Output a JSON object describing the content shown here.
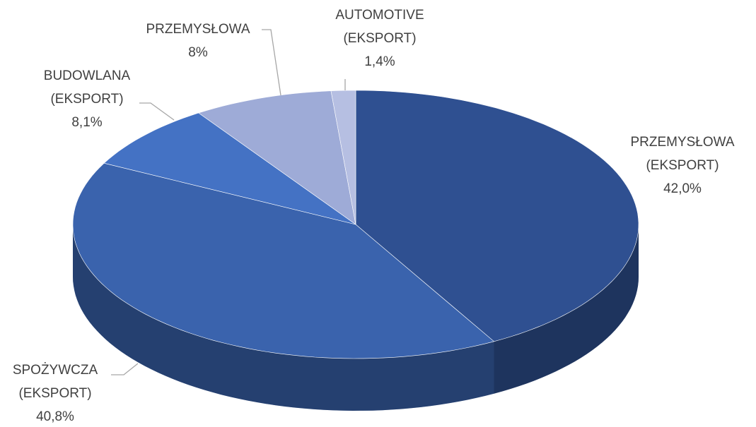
{
  "chart_data": {
    "type": "pie",
    "categories": [
      "PRZEMYSŁOWA (EKSPORT)",
      "SPOŻYWCZA (EKSPORT)",
      "BUDOWLANA (EKSPORT)",
      "PRZEMYSŁOWA",
      "AUTOMOTIVE (EKSPORT)"
    ],
    "values": [
      42.0,
      40.8,
      8.1,
      8,
      1.4
    ],
    "value_labels": [
      "42,0%",
      "40,8%",
      "8,1%",
      "8%",
      "1,4%"
    ],
    "colors": [
      "#2f5091",
      "#3a63ad",
      "#4472c4",
      "#9eabd7",
      "#b6bfe2"
    ]
  }
}
